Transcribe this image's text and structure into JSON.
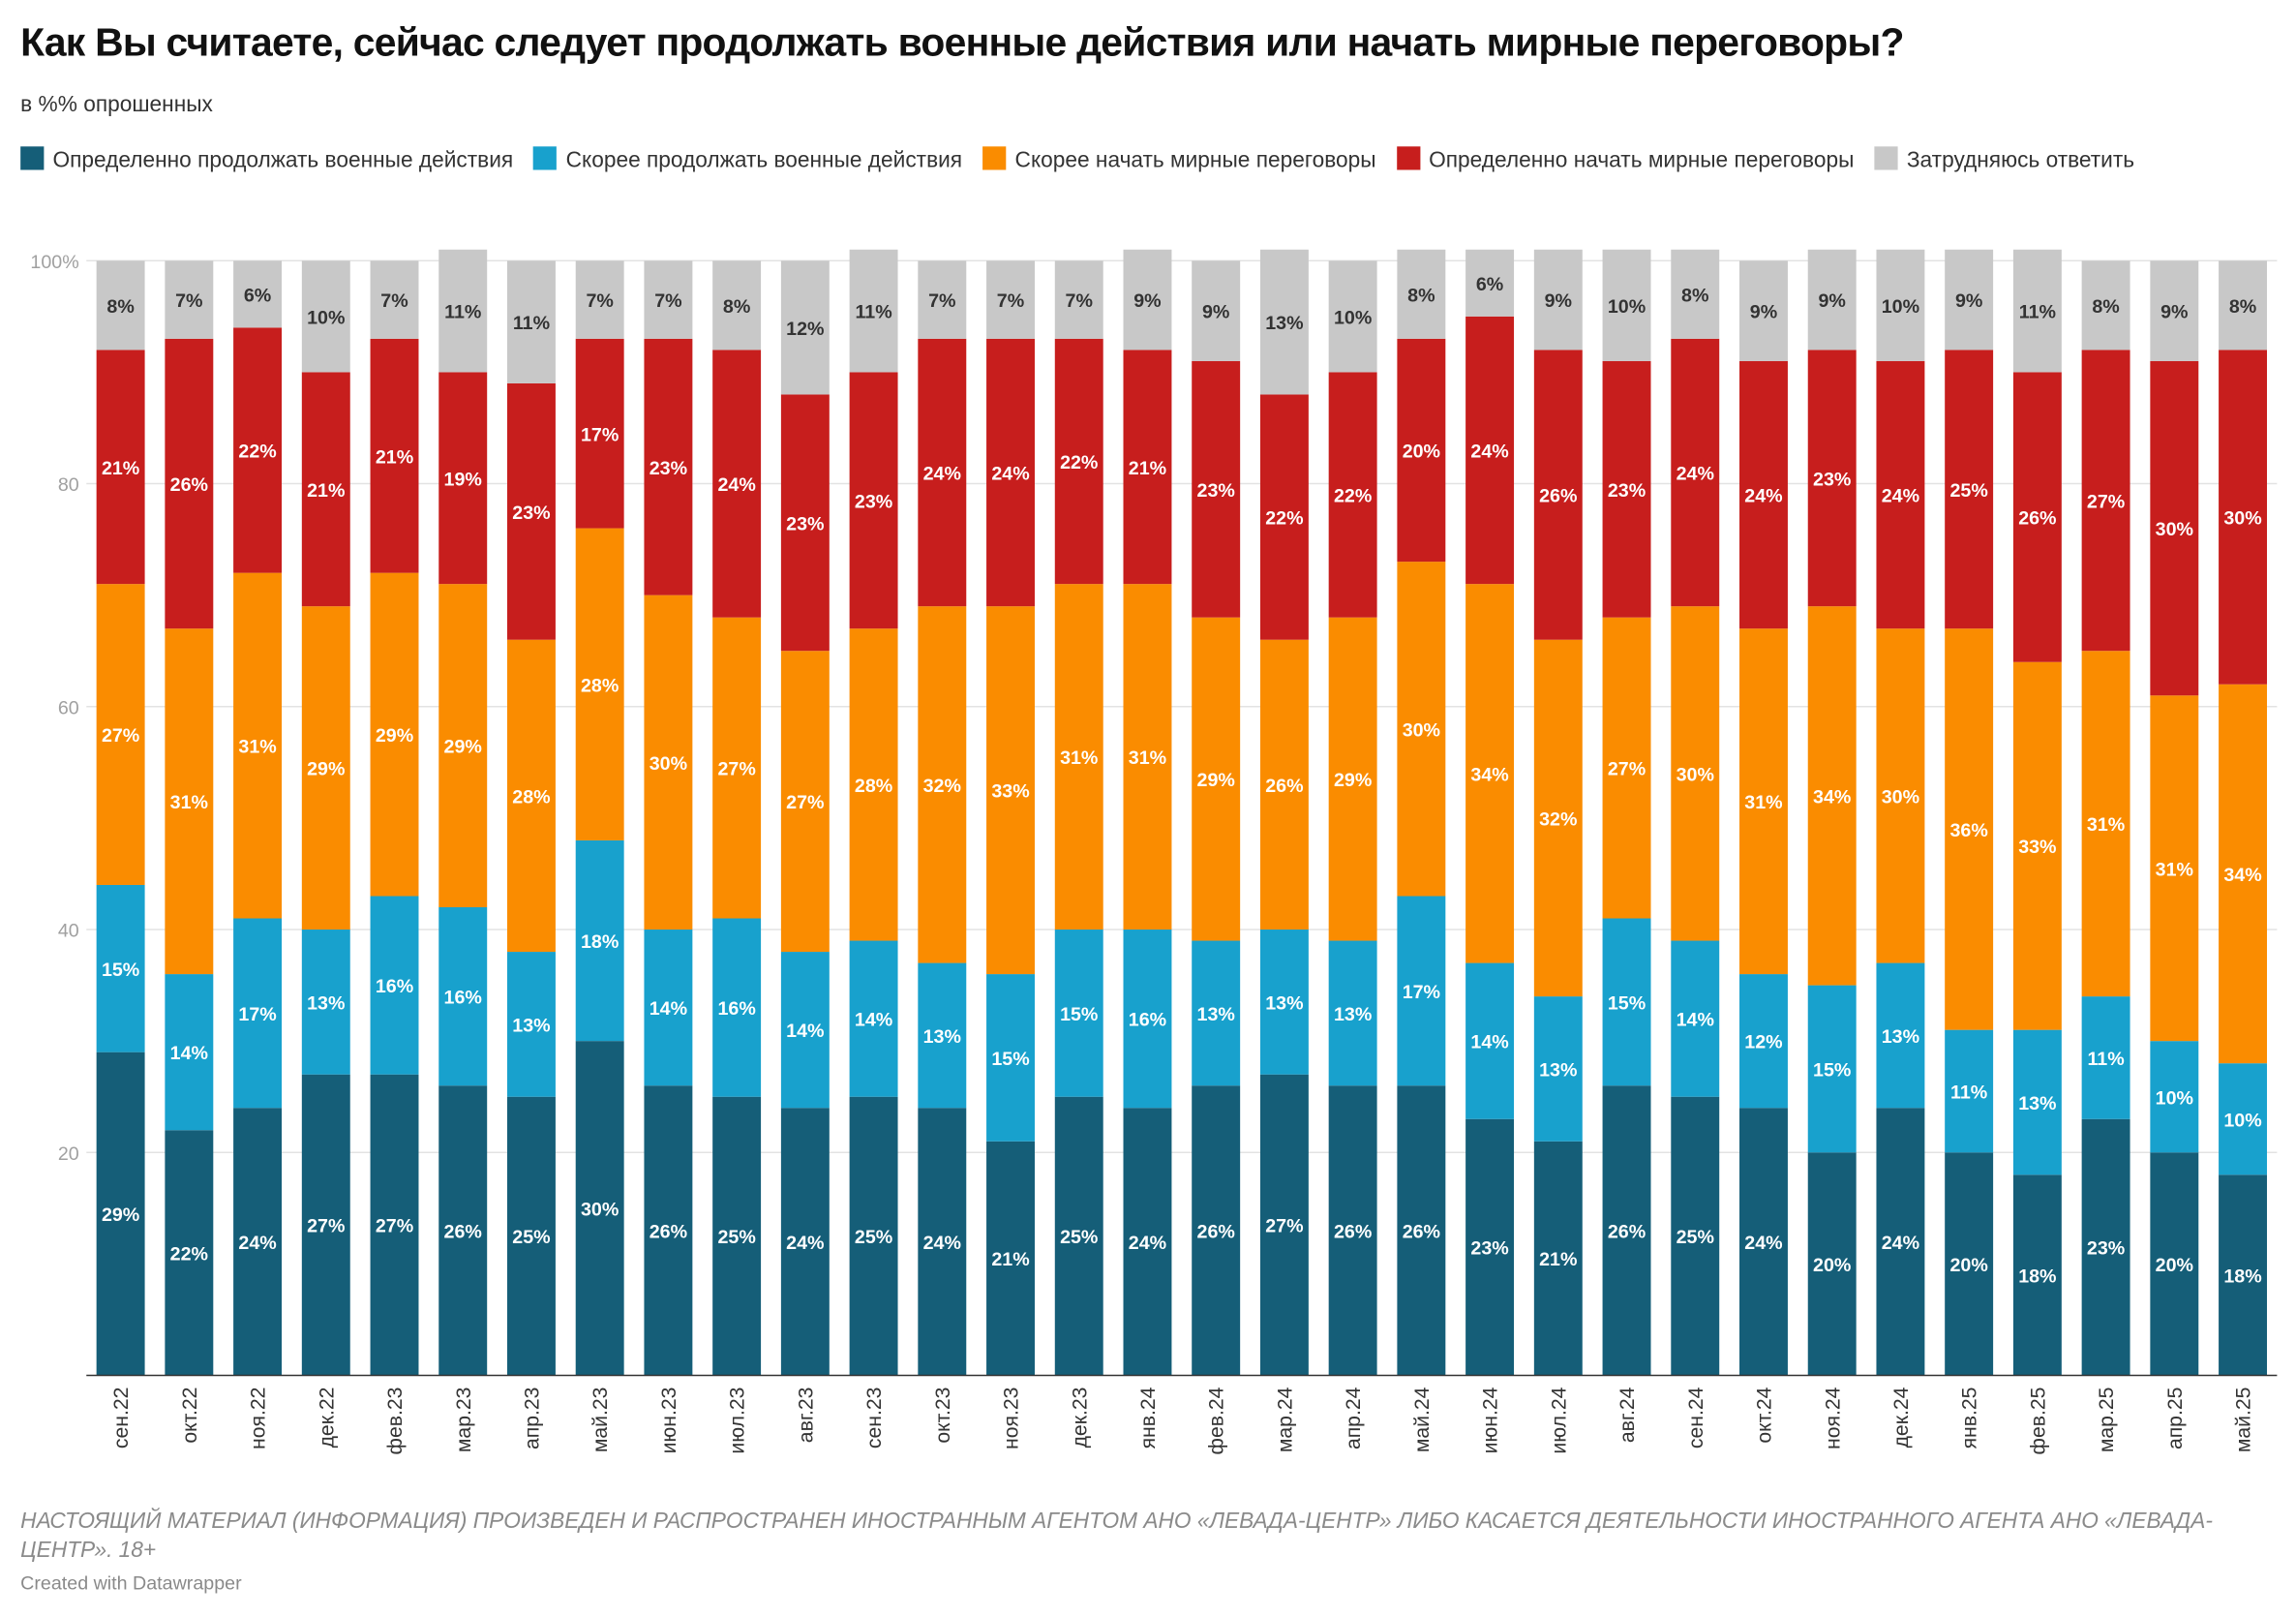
{
  "chart_data": {
    "type": "stacked_bar",
    "title": "Как Вы считаете, сейчас следует продолжать военные действия или начать мирные переговоры?",
    "subtitle": "в %% опрошенных",
    "footer": "НАСТОЯЩИЙ МАТЕРИАЛ (ИНФОРМАЦИЯ) ПРОИЗВЕДЕН И РАСПРОСТРАНЕН ИНОСТРАННЫМ АГЕНТОМ АНО «ЛЕВАДА-ЦЕНТР» ЛИБО КАСАЕТСЯ ДЕЯТЕЛЬНОСТИ ИНОСТРАННОГО АГЕНТА АНО «ЛЕВАДА-ЦЕНТР». 18+",
    "credit": "Created with Datawrapper",
    "categories": [
      "сен.22",
      "окт.22",
      "ноя.22",
      "дек.22",
      "фев.23",
      "мар.23",
      "апр.23",
      "май.23",
      "июн.23",
      "июл.23",
      "авг.23",
      "сен.23",
      "окт.23",
      "ноя.23",
      "дек.23",
      "янв.24",
      "фев.24",
      "мар.24",
      "апр.24",
      "май.24",
      "июн.24",
      "июл.24",
      "авг.24",
      "сен.24",
      "окт.24",
      "ноя.24",
      "дек.24",
      "янв.25",
      "фев.25",
      "мар.25",
      "апр.25",
      "май.25"
    ],
    "ylim": [
      0,
      100
    ],
    "yticks": [
      20,
      40,
      60,
      80,
      {
        "value": 100,
        "label": "100%"
      }
    ],
    "grid": true,
    "series": [
      {
        "name": "Определенно продолжать военные действия",
        "color": "#155e78",
        "label_color": "#ffffff",
        "values": [
          29,
          22,
          24,
          27,
          27,
          26,
          25,
          30,
          26,
          25,
          24,
          25,
          24,
          21,
          25,
          24,
          26,
          27,
          26,
          26,
          23,
          21,
          26,
          25,
          24,
          20,
          24,
          20,
          18,
          23,
          20,
          18
        ],
        "value_labels": [
          "29%",
          "22%",
          "24%",
          "27%",
          "27%",
          "26%",
          "25%",
          "30%",
          "26%",
          "25%",
          "24%",
          "25%",
          "24%",
          "21%",
          "25%",
          "24%",
          "26%",
          "27%",
          "26%",
          "26%",
          "23%",
          "21%",
          "26%",
          "25%",
          "24%",
          "20%",
          "24%",
          "20%",
          "18%",
          "23%",
          "20%",
          "18%"
        ]
      },
      {
        "name": "Скорее продолжать военные действия",
        "color": "#18a1cd",
        "label_color": "#ffffff",
        "values": [
          15,
          14,
          17,
          13,
          16,
          16,
          13,
          18,
          14,
          16,
          14,
          14,
          13,
          15,
          15,
          16,
          13,
          13,
          13,
          17,
          14,
          13,
          15,
          14,
          12,
          15,
          13,
          11,
          13,
          11,
          10,
          10
        ],
        "value_labels": [
          "15%",
          "14%",
          "17%",
          "13%",
          "16%",
          "16%",
          "13%",
          "18%",
          "14%",
          "16%",
          "14%",
          "14%",
          "13%",
          "15%",
          "15%",
          "16%",
          "13%",
          "13%",
          "13%",
          "17%",
          "14%",
          "13%",
          "15%",
          "14%",
          "12%",
          "15%",
          "13%",
          "11%",
          "13%",
          "11%",
          "10%",
          "10%"
        ]
      },
      {
        "name": "Скорее начать мирные переговоры",
        "color": "#fa8c00",
        "label_color": "#ffffff",
        "values": [
          27,
          31,
          31,
          29,
          29,
          29,
          28,
          28,
          30,
          27,
          27,
          28,
          32,
          33,
          31,
          31,
          29,
          26,
          29,
          30,
          34,
          32,
          27,
          30,
          31,
          34,
          30,
          36,
          33,
          31,
          31,
          34
        ],
        "value_labels": [
          "27%",
          "31%",
          "31%",
          "29%",
          "29%",
          "29%",
          "28%",
          "28%",
          "30%",
          "27%",
          "27%",
          "28%",
          "32%",
          "33%",
          "31%",
          "31%",
          "29%",
          "26%",
          "29%",
          "30%",
          "34%",
          "32%",
          "27%",
          "30%",
          "31%",
          "34%",
          "30%",
          "36%",
          "33%",
          "31%",
          "31%",
          "34%"
        ]
      },
      {
        "name": "Определенно начать мирные переговоры",
        "color": "#c71e1d",
        "label_color": "#ffffff",
        "values": [
          21,
          26,
          22,
          21,
          21,
          19,
          23,
          17,
          23,
          24,
          23,
          23,
          24,
          24,
          22,
          21,
          23,
          22,
          22,
          20,
          24,
          26,
          23,
          24,
          24,
          23,
          24,
          25,
          26,
          27,
          30,
          30
        ],
        "value_labels": [
          "21%",
          "26%",
          "22%",
          "21%",
          "21%",
          "19%",
          "23%",
          "17%",
          "23%",
          "24%",
          "23%",
          "23%",
          "24%",
          "24%",
          "22%",
          "21%",
          "23%",
          "22%",
          "22%",
          "20%",
          "24%",
          "26%",
          "23%",
          "24%",
          "24%",
          "23%",
          "24%",
          "25%",
          "26%",
          "27%",
          "30%",
          "30%"
        ]
      },
      {
        "name": "Затрудняюсь ответить",
        "color": "#c8c8c8",
        "label_color": "#333333",
        "values": [
          8,
          7,
          6,
          10,
          7,
          11,
          11,
          7,
          7,
          8,
          12,
          11,
          7,
          7,
          7,
          9,
          9,
          13,
          10,
          8,
          6,
          9,
          10,
          8,
          9,
          9,
          10,
          9,
          11,
          8,
          9,
          8
        ],
        "value_labels": [
          "8%",
          "7%",
          "6%",
          "10%",
          "7%",
          "11%",
          "11%",
          "7%",
          "7%",
          "8%",
          "12%",
          "11%",
          "7%",
          "7%",
          "7%",
          "9%",
          "9%",
          "13%",
          "10%",
          "8%",
          "6%",
          "9%",
          "10%",
          "8%",
          "9%",
          "9%",
          "10%",
          "9%",
          "11%",
          "8%",
          "9%",
          "8%"
        ]
      }
    ]
  }
}
